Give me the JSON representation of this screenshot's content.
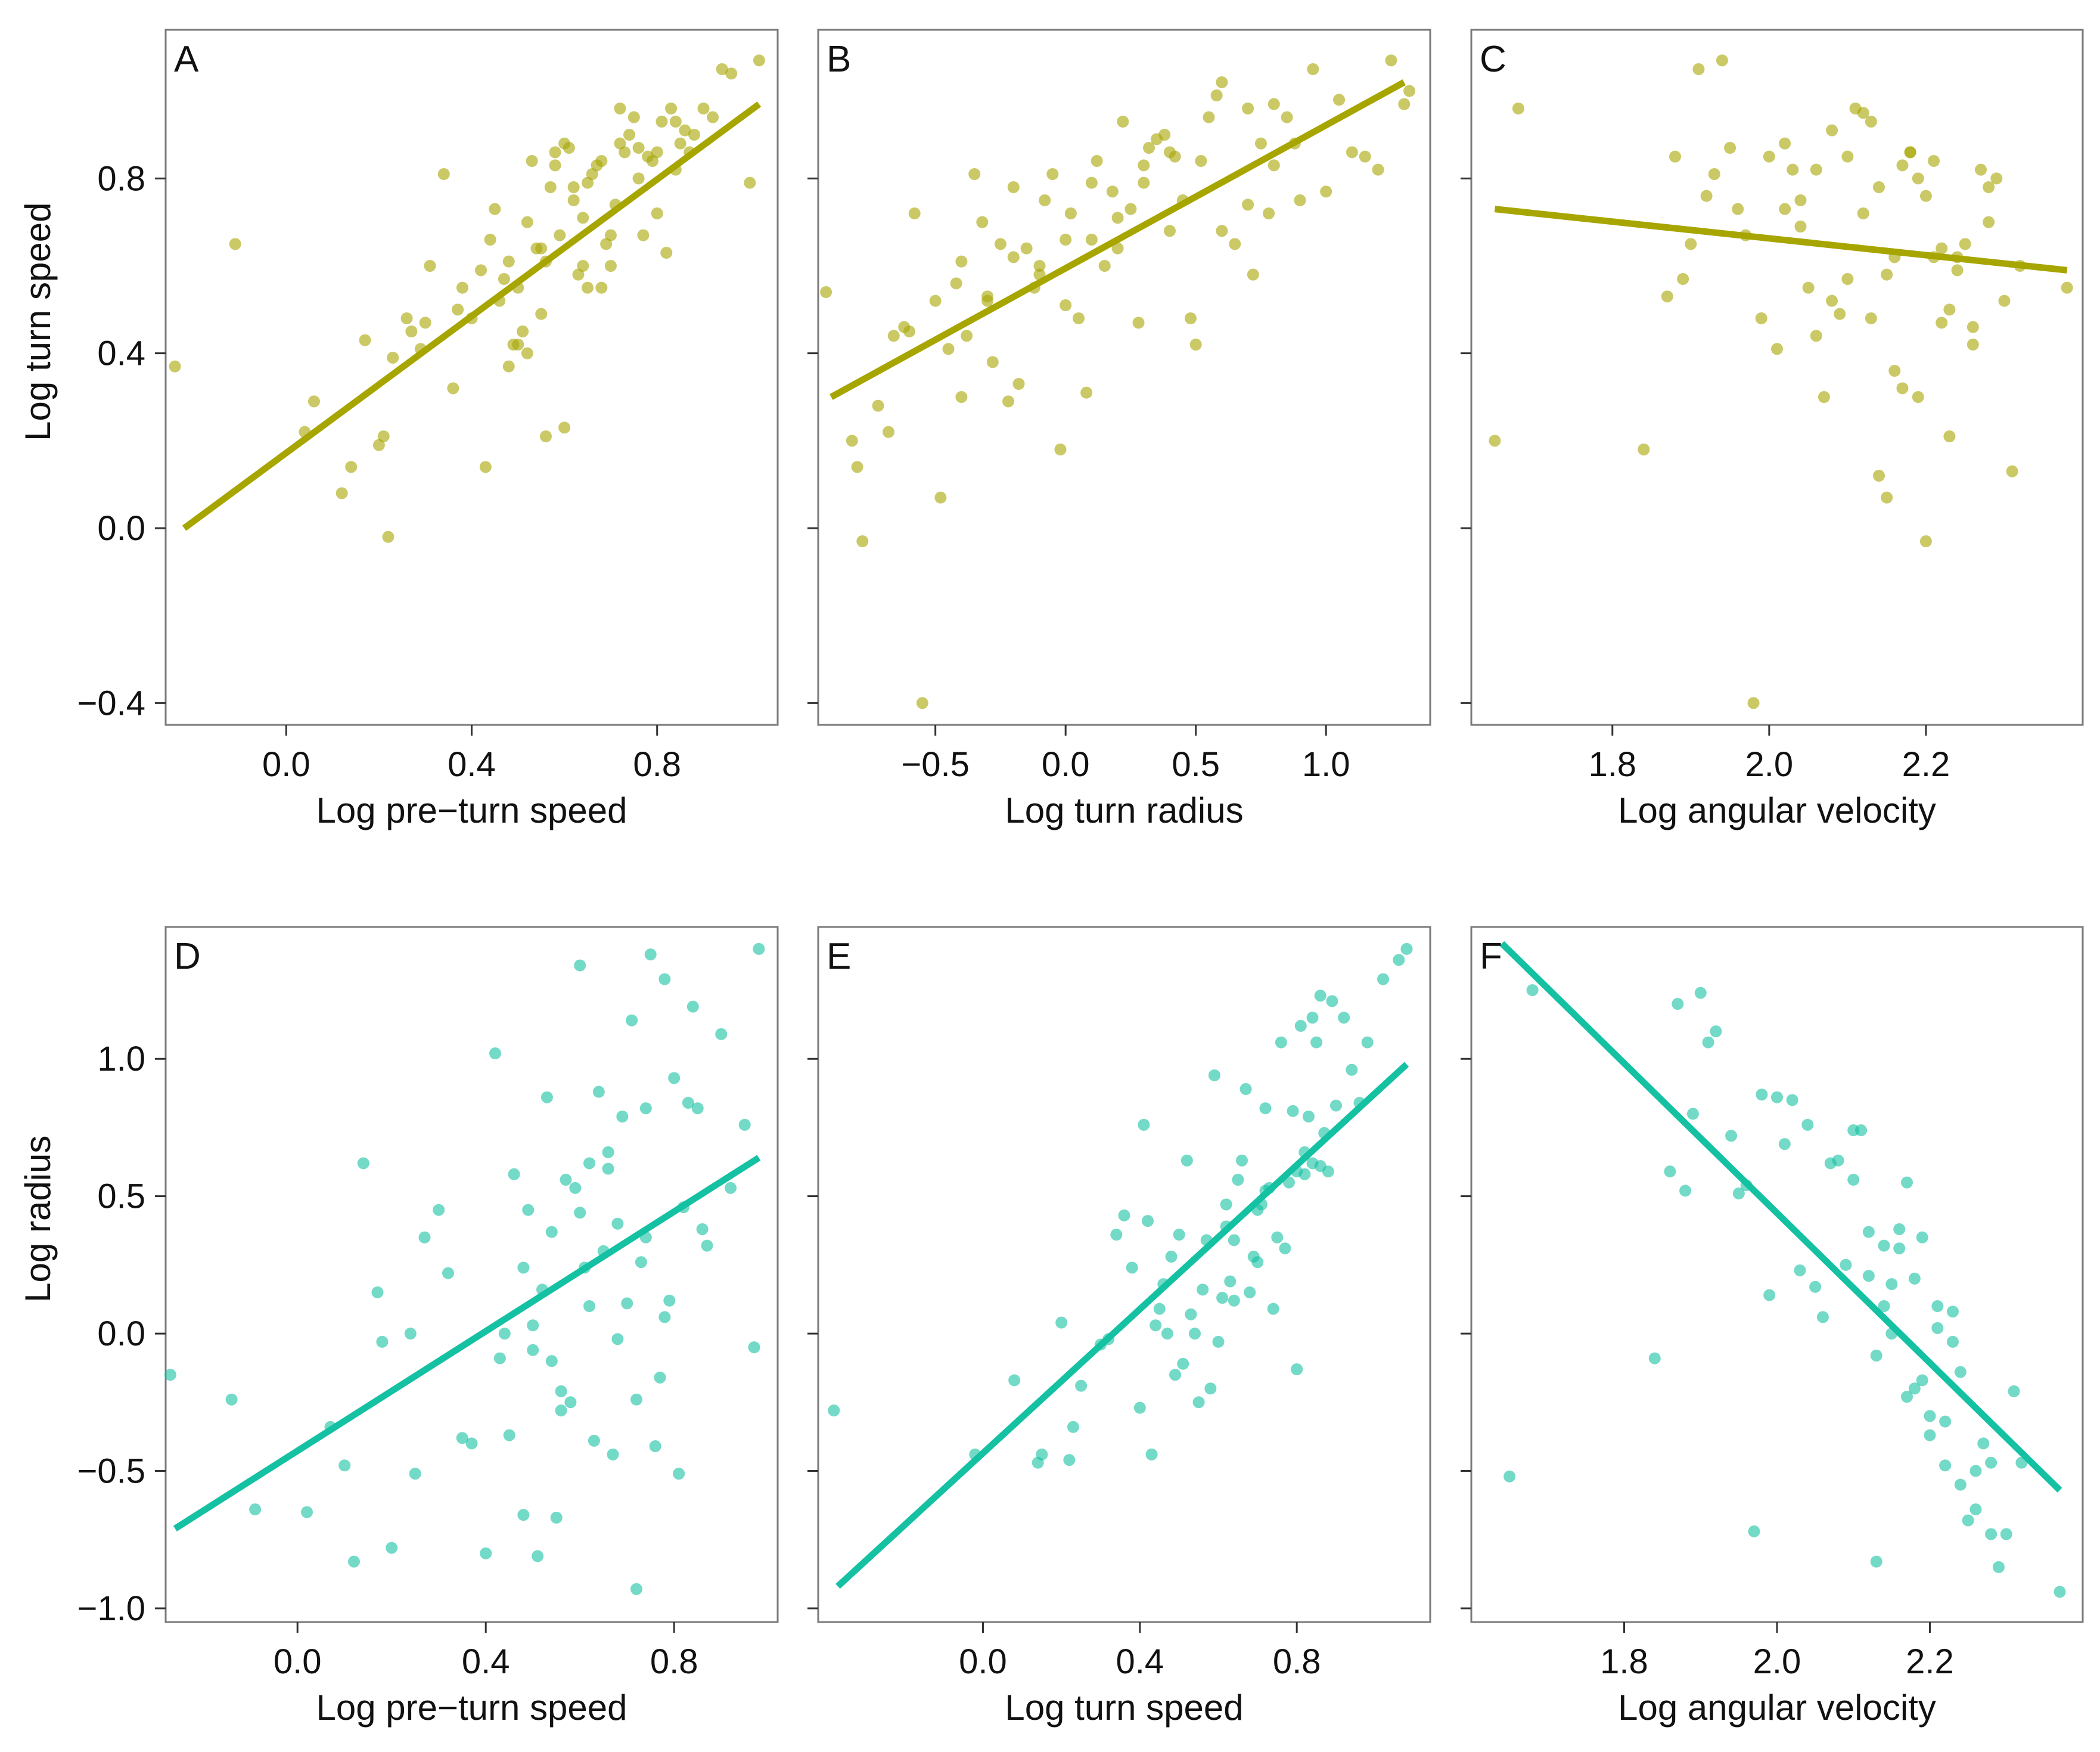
{
  "colors": {
    "olive": "#a7a500",
    "teal": "#14c1a2"
  },
  "chart_data": [
    {
      "panel": "A",
      "type": "scatter",
      "color": "olive",
      "xlabel": "Log pre−turn speed",
      "ylabel": "Log turn speed",
      "xlim": [
        -0.26,
        1.06
      ],
      "ylim": [
        -0.45,
        1.14
      ],
      "xticks": [
        0.0,
        0.4,
        0.8
      ],
      "xtick_labels": [
        "0.0",
        "0.4",
        "0.8"
      ],
      "yticks": [
        -0.4,
        0.0,
        0.4,
        0.8
      ],
      "ytick_labels": [
        "−0.4",
        "0.0",
        "0.4",
        "0.8"
      ],
      "fit": [
        [
          -0.22,
          0.0
        ],
        [
          1.02,
          0.97
        ]
      ],
      "x": [
        -0.24,
        -0.11,
        0.04,
        0.06,
        0.12,
        0.14,
        0.17,
        0.2,
        0.21,
        0.22,
        0.23,
        0.26,
        0.27,
        0.29,
        0.3,
        0.31,
        0.34,
        0.36,
        0.37,
        0.38,
        0.4,
        0.42,
        0.43,
        0.44,
        0.45,
        0.46,
        0.47,
        0.48,
        0.49,
        0.5,
        0.51,
        0.52,
        0.53,
        0.54,
        0.55,
        0.56,
        0.57,
        0.58,
        0.59,
        0.6,
        0.61,
        0.62,
        0.63,
        0.64,
        0.65,
        0.66,
        0.67,
        0.68,
        0.69,
        0.7,
        0.71,
        0.72,
        0.73,
        0.74,
        0.75,
        0.76,
        0.77,
        0.78,
        0.79,
        0.8,
        0.81,
        0.82,
        0.83,
        0.84,
        0.85,
        0.86,
        0.87,
        0.88,
        0.9,
        0.92,
        0.94,
        0.96,
        1.0,
        1.02,
        0.55,
        0.6,
        0.65,
        0.7,
        0.52,
        0.58,
        0.48,
        0.5,
        0.62,
        0.68,
        0.72,
        0.76,
        0.8,
        0.84,
        0.64,
        0.56
      ],
      "y": [
        0.37,
        0.65,
        0.22,
        0.29,
        0.08,
        0.14,
        0.43,
        0.19,
        0.21,
        -0.02,
        0.39,
        0.48,
        0.45,
        0.41,
        0.47,
        0.6,
        0.81,
        0.32,
        0.5,
        0.55,
        0.48,
        0.59,
        0.14,
        0.66,
        0.73,
        0.52,
        0.57,
        0.61,
        0.42,
        0.42,
        0.45,
        0.7,
        0.84,
        0.64,
        0.49,
        0.21,
        0.78,
        0.83,
        0.67,
        0.23,
        0.87,
        0.75,
        0.58,
        0.6,
        0.55,
        0.81,
        0.83,
        0.55,
        0.65,
        0.6,
        0.74,
        0.88,
        0.86,
        0.9,
        0.94,
        0.8,
        0.67,
        0.85,
        0.84,
        0.72,
        0.93,
        0.63,
        0.96,
        0.82,
        0.88,
        0.91,
        0.86,
        0.9,
        0.96,
        0.94,
        1.05,
        1.04,
        0.79,
        1.07,
        0.64,
        0.88,
        0.79,
        0.67,
        0.4,
        0.86,
        0.37,
        0.55,
        0.78,
        0.84,
        0.96,
        0.87,
        0.86,
        0.93,
        0.71,
        0.61
      ]
    },
    {
      "panel": "B",
      "type": "scatter",
      "color": "olive",
      "xlabel": "Log turn radius",
      "ylabel": "",
      "xlim": [
        -0.95,
        1.4
      ],
      "ylim": [
        -0.45,
        1.14
      ],
      "xticks": [
        -0.5,
        0.0,
        0.5,
        1.0
      ],
      "xtick_labels": [
        "−0.5",
        "0.0",
        "0.5",
        "1.0"
      ],
      "yticks": [
        -0.4,
        0.0,
        0.4,
        0.8
      ],
      "ytick_labels": [],
      "fit": [
        [
          -0.9,
          0.3
        ],
        [
          1.3,
          1.02
        ]
      ],
      "x": [
        -0.92,
        -0.82,
        -0.8,
        -0.78,
        -0.72,
        -0.68,
        -0.66,
        -0.62,
        -0.58,
        -0.55,
        -0.5,
        -0.48,
        -0.45,
        -0.42,
        -0.4,
        -0.38,
        -0.35,
        -0.32,
        -0.3,
        -0.28,
        -0.25,
        -0.22,
        -0.2,
        -0.18,
        -0.15,
        -0.12,
        -0.1,
        -0.08,
        -0.05,
        -0.02,
        0.0,
        0.02,
        0.05,
        0.08,
        0.1,
        0.12,
        0.15,
        0.18,
        0.2,
        0.22,
        0.25,
        0.28,
        0.3,
        0.32,
        0.35,
        0.38,
        0.4,
        0.42,
        0.45,
        0.48,
        0.5,
        0.52,
        0.55,
        0.58,
        0.6,
        0.65,
        0.7,
        0.72,
        0.75,
        0.78,
        0.8,
        0.85,
        0.88,
        0.9,
        0.95,
        1.0,
        1.05,
        1.1,
        1.15,
        1.2,
        1.25,
        1.3,
        1.32,
        -0.6,
        -0.4,
        -0.2,
        0.0,
        0.2,
        0.4,
        0.6,
        0.8,
        -0.1,
        0.3,
        0.7,
        -0.3,
        0.1
      ],
      "y": [
        0.54,
        0.2,
        0.14,
        -0.03,
        0.28,
        0.22,
        0.44,
        0.46,
        0.72,
        -0.4,
        0.52,
        0.07,
        0.41,
        0.56,
        0.61,
        0.44,
        0.81,
        0.7,
        0.53,
        0.38,
        0.65,
        0.29,
        0.78,
        0.33,
        0.64,
        0.55,
        0.6,
        0.75,
        0.81,
        0.18,
        0.66,
        0.72,
        0.48,
        0.31,
        0.79,
        0.84,
        0.6,
        0.77,
        0.64,
        0.93,
        0.73,
        0.47,
        0.83,
        0.87,
        0.89,
        0.9,
        0.68,
        0.85,
        0.75,
        0.48,
        0.42,
        0.84,
        0.94,
        0.99,
        1.02,
        0.65,
        0.96,
        0.58,
        0.88,
        0.72,
        0.83,
        0.94,
        0.88,
        0.75,
        1.05,
        0.77,
        0.98,
        0.86,
        0.85,
        0.82,
        1.07,
        0.97,
        1.0,
        0.45,
        0.3,
        0.62,
        0.51,
        0.71,
        0.86,
        0.68,
        0.97,
        0.58,
        0.79,
        0.74,
        0.52,
        0.66
      ]
    },
    {
      "panel": "C",
      "type": "scatter",
      "color": "olive",
      "xlabel": "Log angular velocity",
      "ylabel": "",
      "xlim": [
        1.62,
        2.4
      ],
      "ylim": [
        -0.45,
        1.14
      ],
      "xticks": [
        1.8,
        2.0,
        2.2
      ],
      "xtick_labels": [
        "1.8",
        "2.0",
        "2.2"
      ],
      "yticks": [
        -0.4,
        0.0,
        0.4,
        0.8
      ],
      "ytick_labels": [],
      "fit": [
        [
          1.65,
          0.73
        ],
        [
          2.38,
          0.59
        ]
      ],
      "x": [
        1.65,
        1.68,
        1.84,
        1.87,
        1.88,
        1.89,
        1.9,
        1.91,
        1.92,
        1.93,
        1.94,
        1.95,
        1.96,
        1.97,
        1.98,
        1.99,
        2.0,
        2.01,
        2.02,
        2.03,
        2.04,
        2.05,
        2.06,
        2.07,
        2.08,
        2.09,
        2.1,
        2.11,
        2.12,
        2.13,
        2.14,
        2.15,
        2.16,
        2.17,
        2.18,
        2.19,
        2.2,
        2.21,
        2.22,
        2.23,
        2.24,
        2.25,
        2.26,
        2.27,
        2.28,
        2.29,
        2.3,
        2.31,
        2.32,
        2.38,
        2.13,
        2.15,
        2.17,
        2.19,
        2.21,
        2.23,
        2.06,
        2.08,
        2.1,
        2.02,
        2.04,
        2.12,
        2.14,
        2.16,
        2.18,
        2.2,
        2.22,
        2.24,
        2.26,
        2.28
      ],
      "y": [
        0.2,
        0.96,
        0.18,
        0.53,
        0.85,
        0.57,
        0.65,
        1.05,
        0.76,
        0.81,
        1.07,
        0.87,
        0.73,
        0.67,
        -0.4,
        0.48,
        0.85,
        0.41,
        0.88,
        0.82,
        0.75,
        0.55,
        0.44,
        0.3,
        0.91,
        0.49,
        0.85,
        0.96,
        0.72,
        0.48,
        0.12,
        0.07,
        0.36,
        0.32,
        0.86,
        0.3,
        -0.03,
        0.84,
        0.47,
        0.21,
        0.62,
        0.65,
        0.42,
        0.82,
        0.78,
        0.8,
        0.52,
        0.13,
        0.6,
        0.55,
        0.93,
        0.58,
        0.83,
        0.8,
        0.62,
        0.5,
        0.82,
        0.52,
        0.57,
        0.73,
        0.69,
        0.95,
        0.78,
        0.62,
        0.86,
        0.76,
        0.64,
        0.59,
        0.46,
        0.7
      ]
    },
    {
      "panel": "D",
      "type": "scatter",
      "color": "teal",
      "xlabel": "Log pre−turn speed",
      "ylabel": "Log radius",
      "xlim": [
        -0.28,
        1.02
      ],
      "ylim": [
        -1.05,
        1.48
      ],
      "xticks": [
        0.0,
        0.4,
        0.8
      ],
      "xtick_labels": [
        "0.0",
        "0.4",
        "0.8"
      ],
      "yticks": [
        -1.0,
        -0.5,
        0.0,
        0.5,
        1.0
      ],
      "ytick_labels": [
        "−1.0",
        "−0.5",
        "0.0",
        "0.5",
        "1.0"
      ],
      "fit": [
        [
          -0.26,
          -0.71
        ],
        [
          0.98,
          0.64
        ]
      ],
      "x": [
        -0.27,
        -0.14,
        -0.09,
        0.02,
        0.07,
        0.1,
        0.12,
        0.14,
        0.17,
        0.18,
        0.2,
        0.24,
        0.25,
        0.27,
        0.3,
        0.32,
        0.35,
        0.37,
        0.4,
        0.42,
        0.43,
        0.45,
        0.46,
        0.48,
        0.49,
        0.5,
        0.51,
        0.52,
        0.53,
        0.54,
        0.55,
        0.56,
        0.57,
        0.58,
        0.59,
        0.6,
        0.61,
        0.62,
        0.63,
        0.64,
        0.65,
        0.66,
        0.67,
        0.68,
        0.69,
        0.7,
        0.71,
        0.72,
        0.73,
        0.74,
        0.75,
        0.76,
        0.77,
        0.78,
        0.79,
        0.8,
        0.81,
        0.82,
        0.83,
        0.84,
        0.85,
        0.86,
        0.87,
        0.9,
        0.92,
        0.95,
        0.97,
        0.98,
        0.44,
        0.5,
        0.56,
        0.62,
        0.68,
        0.74,
        0.48,
        0.54,
        0.6,
        0.66,
        0.72,
        0.78
      ],
      "y": [
        -0.15,
        -0.24,
        -0.64,
        -0.65,
        -0.34,
        -0.48,
        -0.83,
        0.62,
        0.15,
        -0.03,
        -0.78,
        0.0,
        -0.51,
        0.35,
        0.45,
        0.22,
        -0.38,
        -0.4,
        -0.8,
        1.02,
        -0.09,
        -0.37,
        0.58,
        -0.66,
        0.45,
        -0.06,
        -0.81,
        0.16,
        0.86,
        0.37,
        -0.67,
        -0.21,
        0.56,
        -0.25,
        0.53,
        1.34,
        0.24,
        0.62,
        -0.39,
        0.88,
        0.3,
        0.66,
        -0.44,
        0.4,
        0.79,
        0.11,
        1.14,
        -0.93,
        0.26,
        0.35,
        1.38,
        -0.41,
        -0.16,
        1.29,
        0.12,
        0.93,
        -0.51,
        0.46,
        0.84,
        1.19,
        0.82,
        0.38,
        0.32,
        1.09,
        0.53,
        0.76,
        -0.05,
        1.4,
        0.0,
        0.03,
        -0.28,
        0.1,
        -0.02,
        0.82,
        0.24,
        -0.1,
        0.44,
        0.6,
        -0.24,
        0.06
      ]
    },
    {
      "panel": "E",
      "type": "scatter",
      "color": "teal",
      "xlabel": "Log turn speed",
      "ylabel": "",
      "xlim": [
        -0.42,
        1.14
      ],
      "ylim": [
        -1.05,
        1.48
      ],
      "xticks": [
        0.0,
        0.4,
        0.8
      ],
      "xtick_labels": [
        "0.0",
        "0.4",
        "0.8"
      ],
      "yticks": [
        -1.0,
        -0.5,
        0.0,
        0.5,
        1.0
      ],
      "ytick_labels": [],
      "fit": [
        [
          -0.37,
          -0.92
        ],
        [
          1.08,
          0.98
        ]
      ],
      "x": [
        -0.38,
        -0.02,
        0.08,
        0.14,
        0.15,
        0.2,
        0.22,
        0.23,
        0.25,
        0.3,
        0.32,
        0.34,
        0.36,
        0.38,
        0.4,
        0.41,
        0.42,
        0.43,
        0.44,
        0.45,
        0.46,
        0.47,
        0.48,
        0.49,
        0.5,
        0.51,
        0.52,
        0.53,
        0.54,
        0.55,
        0.56,
        0.57,
        0.58,
        0.59,
        0.6,
        0.61,
        0.62,
        0.63,
        0.64,
        0.65,
        0.66,
        0.67,
        0.68,
        0.69,
        0.7,
        0.71,
        0.72,
        0.73,
        0.74,
        0.75,
        0.76,
        0.77,
        0.78,
        0.79,
        0.8,
        0.81,
        0.82,
        0.83,
        0.84,
        0.85,
        0.86,
        0.87,
        0.88,
        0.89,
        0.9,
        0.92,
        0.94,
        0.96,
        0.98,
        1.02,
        1.06,
        1.08,
        0.8,
        0.82,
        0.84,
        0.86,
        0.7,
        0.72,
        0.62,
        0.64
      ],
      "y": [
        -0.28,
        -0.44,
        -0.17,
        -0.47,
        -0.44,
        0.04,
        -0.46,
        -0.34,
        -0.19,
        -0.04,
        -0.02,
        0.36,
        0.43,
        0.24,
        -0.27,
        0.76,
        0.41,
        -0.44,
        0.03,
        0.09,
        0.18,
        0.0,
        0.28,
        -0.15,
        0.36,
        -0.11,
        0.63,
        0.07,
        0.0,
        -0.25,
        0.16,
        0.34,
        -0.2,
        0.94,
        -0.03,
        0.13,
        0.39,
        0.19,
        0.34,
        0.56,
        0.63,
        0.89,
        0.15,
        0.28,
        0.45,
        0.47,
        0.82,
        0.53,
        0.09,
        0.35,
        1.06,
        0.31,
        0.55,
        0.81,
        -0.13,
        1.12,
        0.58,
        0.79,
        1.15,
        1.06,
        1.23,
        0.73,
        0.59,
        1.21,
        0.83,
        1.15,
        0.96,
        0.84,
        1.06,
        1.29,
        1.36,
        1.4,
        0.59,
        0.66,
        0.62,
        0.61,
        0.26,
        0.52,
        0.47,
        0.12
      ]
    },
    {
      "panel": "F",
      "type": "scatter",
      "color": "teal",
      "xlabel": "Log angular velocity",
      "ylabel": "",
      "xlim": [
        1.6,
        2.4
      ],
      "ylim": [
        -1.05,
        1.48
      ],
      "xticks": [
        1.8,
        2.0,
        2.2
      ],
      "xtick_labels": [
        "1.8",
        "2.0",
        "2.2"
      ],
      "yticks": [
        -1.0,
        -0.5,
        0.0,
        0.5,
        1.0
      ],
      "ytick_labels": [],
      "fit": [
        [
          1.64,
          1.42
        ],
        [
          2.37,
          -0.57
        ]
      ],
      "x": [
        1.65,
        1.68,
        1.84,
        1.86,
        1.87,
        1.88,
        1.89,
        1.9,
        1.91,
        1.92,
        1.94,
        1.95,
        1.96,
        1.97,
        1.98,
        1.99,
        2.0,
        2.01,
        2.02,
        2.03,
        2.04,
        2.05,
        2.06,
        2.07,
        2.08,
        2.09,
        2.1,
        2.11,
        2.12,
        2.13,
        2.14,
        2.15,
        2.16,
        2.17,
        2.18,
        2.19,
        2.2,
        2.21,
        2.22,
        2.23,
        2.24,
        2.25,
        2.26,
        2.27,
        2.28,
        2.29,
        2.3,
        2.31,
        2.32,
        2.37,
        2.12,
        2.14,
        2.16,
        2.18,
        2.2,
        2.22,
        2.24,
        2.26,
        2.28,
        2.1,
        2.13,
        2.15,
        2.17,
        2.19,
        2.21,
        2.23
      ],
      "y": [
        -0.52,
        1.25,
        -0.09,
        0.59,
        1.2,
        0.52,
        0.8,
        1.24,
        1.06,
        1.1,
        0.72,
        0.51,
        0.54,
        -0.72,
        0.87,
        0.14,
        0.86,
        0.69,
        0.85,
        0.23,
        0.76,
        0.17,
        0.06,
        0.62,
        0.63,
        0.25,
        0.56,
        0.74,
        0.21,
        -0.83,
        0.1,
        0.18,
        0.38,
        0.55,
        -0.2,
        0.35,
        -0.3,
        0.1,
        -0.32,
        0.08,
        -0.14,
        -0.68,
        -0.64,
        -0.4,
        -0.47,
        -0.85,
        -0.73,
        -0.21,
        -0.47,
        -0.94,
        0.37,
        0.32,
        0.31,
        0.2,
        -0.37,
        -0.48,
        -0.55,
        -0.5,
        -0.73,
        0.74,
        -0.08,
        0.0,
        -0.23,
        -0.17,
        0.02,
        -0.03
      ]
    }
  ]
}
